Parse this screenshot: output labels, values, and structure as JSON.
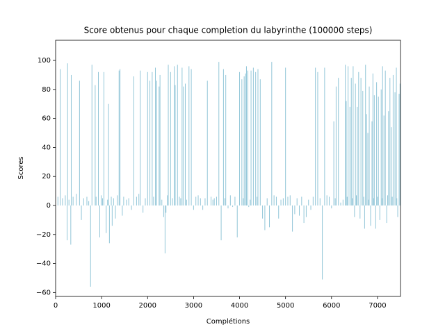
{
  "chart_data": {
    "type": "bar",
    "title": "Score obtenus pour chaque completion du labyrinthe (100000 steps)",
    "x_label": "Complétions",
    "y_label": "Scores",
    "color": "#92c6d8",
    "xlim": [
      0,
      7500
    ],
    "ylim": [
      -62.7,
      113.9
    ],
    "xticks": [
      0,
      1000,
      2000,
      3000,
      4000,
      5000,
      6000,
      7000
    ],
    "yticks": [
      {
        "value": -60,
        "label": "−60"
      },
      {
        "value": -40,
        "label": "−40"
      },
      {
        "value": -20,
        "label": "−20"
      },
      0,
      20,
      40,
      60,
      80,
      100
    ],
    "x": [
      100,
      250,
      260,
      330,
      340,
      520,
      560,
      760,
      790,
      860,
      930,
      960,
      1050,
      1100,
      1150,
      1170,
      1230,
      1300,
      1380,
      1400,
      1450,
      1650,
      1700,
      1840,
      1900,
      2000,
      2050,
      2100,
      2170,
      2200,
      2250,
      2270,
      2350,
      2380,
      2400,
      2450,
      2500,
      2580,
      2600,
      2650,
      2750,
      2780,
      2820,
      2900,
      2950,
      3000,
      3200,
      3250,
      3300,
      3450,
      3550,
      3600,
      3650,
      3700,
      3750,
      3850,
      3950,
      4000,
      4050,
      4100,
      4130,
      4150,
      4180,
      4200,
      4250,
      4300,
      4350,
      4400,
      4450,
      4500,
      4550,
      4650,
      4700,
      4850,
      5000,
      5150,
      5200,
      5300,
      5400,
      5450,
      5550,
      5650,
      5700,
      5800,
      5850,
      6000,
      6050,
      6100,
      6150,
      6200,
      6300,
      6320,
      6360,
      6400,
      6430,
      6470,
      6500,
      6520,
      6560,
      6590,
      6620,
      6640,
      6680,
      6720,
      6740,
      6760,
      6790,
      6820,
      6850,
      6880,
      6900,
      6930,
      6960,
      6980,
      7020,
      7050,
      7080,
      7110,
      7140,
      7170,
      7200,
      7240,
      7270,
      7300,
      7340,
      7380,
      7410,
      7440,
      7470,
      7490,
      50,
      150,
      210,
      290,
      380,
      450,
      610,
      680,
      720,
      880,
      990,
      1020,
      1130,
      1210,
      1260,
      1340,
      1480,
      1540,
      1590,
      1760,
      1810,
      1950,
      2130,
      2310,
      2430,
      2540,
      2690,
      2720,
      2850,
      3050,
      3100,
      3150,
      3380,
      3420,
      3500,
      3680,
      3800,
      3900,
      4080,
      4230,
      4380,
      4600,
      4750,
      4800,
      4900,
      4950,
      5050,
      5100,
      5250,
      5350,
      5500,
      5600,
      5750,
      5900,
      5950,
      6080,
      6250,
      6340,
      6450,
      6540,
      6700,
      6800,
      6920,
      7000,
      7100,
      7220,
      7320,
      7420
    ],
    "values": [
      94,
      -24,
      98,
      -27,
      90,
      86,
      -10,
      -56,
      97,
      83,
      92,
      -22,
      92,
      -19,
      70,
      -26,
      -14,
      -9,
      93,
      94,
      -7,
      -3,
      89,
      93,
      -5,
      92,
      86,
      92,
      95,
      86,
      82,
      90,
      -8,
      -33,
      -5,
      97,
      92,
      96,
      83,
      97,
      95,
      82,
      84,
      96,
      94,
      -3,
      -3,
      5,
      86,
      5,
      99,
      -24,
      94,
      90,
      -2,
      -1,
      -22,
      92,
      87,
      89,
      91,
      96,
      93,
      -1,
      93,
      95,
      92,
      94,
      87,
      -9,
      -17,
      -15,
      99,
      -9,
      95,
      -18,
      -6,
      -7,
      -12,
      -8,
      -3,
      95,
      92,
      -51,
      95,
      -2,
      58,
      82,
      88,
      2,
      97,
      72,
      96,
      68,
      88,
      96,
      -8,
      84,
      68,
      92,
      -9,
      88,
      79,
      -16,
      97,
      63,
      50,
      82,
      -14,
      58,
      91,
      76,
      -16,
      85,
      75,
      -10,
      80,
      96,
      62,
      93,
      -12,
      65,
      88,
      54,
      90,
      78,
      95,
      -8,
      77,
      84,
      6,
      5,
      7,
      4,
      6,
      8,
      5,
      6,
      3,
      6,
      7,
      5,
      4,
      6,
      5,
      7,
      6,
      4,
      5,
      6,
      8,
      5,
      6,
      4,
      7,
      5,
      6,
      5,
      4,
      6,
      7,
      5,
      6,
      4,
      6,
      5,
      7,
      6,
      5,
      4,
      6,
      5,
      7,
      6,
      4,
      5,
      6,
      7,
      5,
      6,
      4,
      6,
      5,
      7,
      6,
      5,
      4,
      6,
      5,
      7,
      6,
      4,
      5,
      6,
      5,
      7,
      6,
      5
    ]
  }
}
